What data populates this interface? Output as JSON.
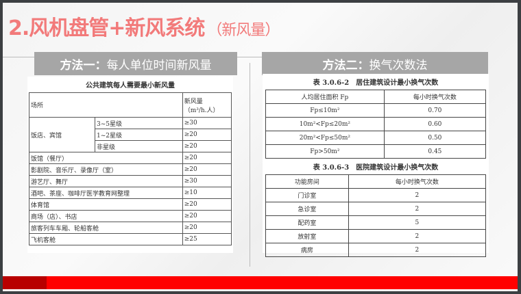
{
  "title": {
    "main": "2.风机盘管+新风系统",
    "sub": "（新风量）"
  },
  "left": {
    "header_bold": "方法一：",
    "header_rest": "每人单位时间新风量",
    "table_title": "公共建筑每人需要最小新风量",
    "col_place": "场所",
    "col_air": "新风量",
    "col_unit": "（m³/h.人）",
    "hotel": {
      "label": "饭店、宾馆",
      "rows": [
        {
          "grade": "3~5星级",
          "value": "≥30"
        },
        {
          "grade": "1~2星级",
          "value": "≥20"
        },
        {
          "grade": "非星级",
          "value": "≥20"
        }
      ]
    },
    "rows": [
      {
        "place": "饭馆（餐厅）",
        "value": "≥20"
      },
      {
        "place": "影剧院、音乐厅、录像厅（室）",
        "value": "≥20"
      },
      {
        "place": "游艺厅、舞厅",
        "value": "≥30"
      },
      {
        "place": "酒吧、茶座、咖啡厅医学教育网整理",
        "value": "≥10"
      },
      {
        "place": "体育馆",
        "value": "≥20"
      },
      {
        "place": "商场（店）、书店",
        "value": "≥20"
      },
      {
        "place": "旅客列车车厢、轮船客舱",
        "value": "≥20"
      },
      {
        "place": "飞机客舱",
        "value": "≥25"
      }
    ]
  },
  "right": {
    "header_bold": "方法二：",
    "header_rest": "换气次数法",
    "t1": {
      "title": "表 3.0.6-2　居住建筑设计最小换气次数",
      "col1": "人均居住面积 Fp",
      "col2": "每小时换气次数",
      "rows": [
        {
          "a": "Fp≤10m²",
          "b": "0.70"
        },
        {
          "a": "10m²<Fp≤20m²",
          "b": "0.60"
        },
        {
          "a": "20m²<Fp≤50m²",
          "b": "0.50"
        },
        {
          "a": "Fp>50m²",
          "b": "0.45"
        }
      ]
    },
    "t2": {
      "title": "表 3.0.6-3　医院建筑设计最小换气次数",
      "col1": "功能房间",
      "col2": "每小时换气次数",
      "rows": [
        {
          "a": "门诊室",
          "b": "2"
        },
        {
          "a": "急诊室",
          "b": "2"
        },
        {
          "a": "配药室",
          "b": "5"
        },
        {
          "a": "放射室",
          "b": "2"
        },
        {
          "a": "病房",
          "b": "2"
        }
      ]
    }
  },
  "colors": {
    "title": "#f27a7a",
    "bar": "#ff0000",
    "bar_dark": "#b80000",
    "header_bg": "#a6a6a6"
  }
}
